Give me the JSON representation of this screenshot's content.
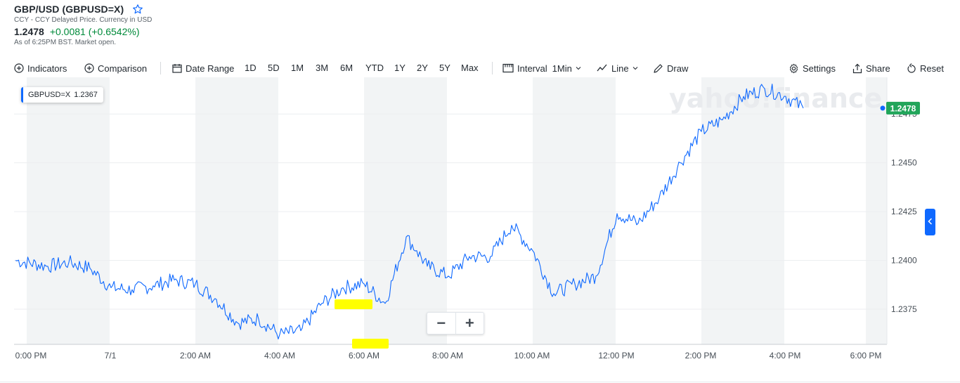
{
  "quote": {
    "title": "GBP/USD (GBPUSD=X)",
    "subtitle": "CCY - CCY Delayed Price. Currency in USD",
    "price": "1.2478",
    "change": "+0.0081 (+0.6542%)",
    "as_of": "As of 6:25PM BST. Market open."
  },
  "toolbar": {
    "indicators": "Indicators",
    "comparison": "Comparison",
    "date_range": "Date Range",
    "ranges": [
      "1D",
      "5D",
      "1M",
      "3M",
      "6M",
      "YTD",
      "1Y",
      "2Y",
      "5Y",
      "Max"
    ],
    "interval_label": "Interval",
    "interval_value": "1Min",
    "chart_type": "Line",
    "draw": "Draw",
    "settings": "Settings",
    "share": "Share",
    "reset": "Reset"
  },
  "legend": {
    "symbol": "GBPUSD=X",
    "value": "1.2367"
  },
  "watermark": "yahoo!finance",
  "zoom": {
    "minus": "−",
    "plus": "+"
  },
  "colors": {
    "line": "#0f69ff",
    "up": "#008a3a",
    "price_tag": "#21a55a",
    "band": "#f2f4f5",
    "highlight": "#ffff00"
  },
  "icons": [
    "star-icon",
    "indicators-icon",
    "comparison-icon",
    "calendar-icon",
    "interval-icon",
    "line-chart-icon",
    "pencil-icon",
    "gear-icon",
    "share-icon",
    "reset-icon",
    "collapse-icon"
  ],
  "chart_data": {
    "type": "line",
    "series": [
      {
        "name": "GBPUSD=X",
        "x": [
          "00:00",
          "00:30",
          "01:00",
          "01:30",
          "02:00",
          "02:30",
          "03:00",
          "03:30",
          "04:00",
          "04:30",
          "05:00",
          "05:30",
          "06:00",
          "06:30",
          "07:00",
          "07:30",
          "08:00",
          "08:30",
          "09:00",
          "09:15",
          "09:30",
          "10:00",
          "10:30",
          "11:00",
          "11:30",
          "12:00",
          "12:30",
          "13:00",
          "13:30",
          "14:00",
          "14:30",
          "15:00",
          "15:30",
          "16:00",
          "16:30",
          "17:00",
          "17:30",
          "18:00",
          "18:25"
        ],
        "values": [
          1.24,
          1.2397,
          1.2399,
          1.2396,
          1.2386,
          1.2385,
          1.2387,
          1.239,
          1.2388,
          1.238,
          1.2368,
          1.237,
          1.2362,
          1.2364,
          1.2378,
          1.2386,
          1.2388,
          1.2378,
          1.2412,
          1.2405,
          1.2397,
          1.2392,
          1.2402,
          1.2402,
          1.2418,
          1.2405,
          1.2383,
          1.2388,
          1.2392,
          1.2424,
          1.2419,
          1.2432,
          1.245,
          1.2466,
          1.2472,
          1.2484,
          1.2488,
          1.2484,
          1.2478
        ]
      }
    ],
    "x_ticks": [
      "0:00 PM",
      "7/1",
      "2:00 AM",
      "4:00 AM",
      "6:00 AM",
      "8:00 AM",
      "10:00 AM",
      "12:00 PM",
      "2:00 PM",
      "4:00 PM",
      "6:00 PM"
    ],
    "y_ticks": [
      "1.2375",
      "1.2400",
      "1.2425",
      "1.2450",
      "1.2475"
    ],
    "ylim": [
      1.2357,
      1.2492
    ],
    "last_price_label": "1.2478",
    "grid": true,
    "legend_position": "top-left"
  }
}
